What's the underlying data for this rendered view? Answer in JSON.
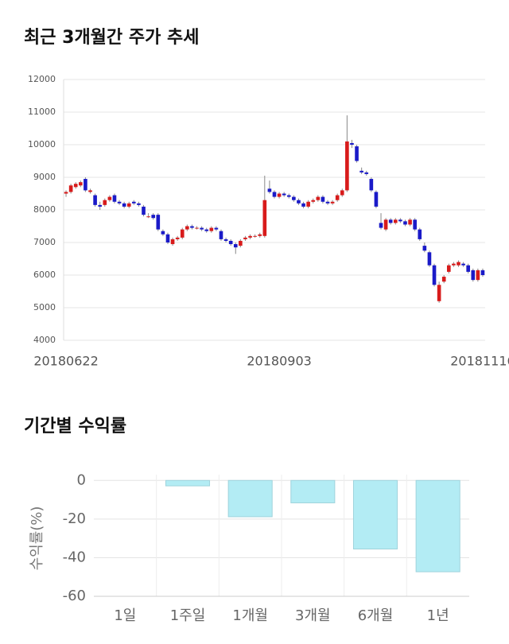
{
  "chart_data": [
    {
      "type": "candlestick",
      "title": "최근 3개월간 주가 추세",
      "categories": [
        "20180622",
        null,
        null,
        null,
        null,
        null,
        null,
        null,
        null,
        null,
        null,
        null,
        null,
        null,
        null,
        null,
        null,
        null,
        null,
        null,
        null,
        null,
        null,
        null,
        null,
        null,
        null,
        null,
        null,
        null,
        null,
        null,
        null,
        null,
        null,
        null,
        null,
        null,
        null,
        null,
        null,
        null,
        null,
        null,
        "20180903",
        null,
        null,
        null,
        null,
        null,
        null,
        null,
        null,
        null,
        null,
        null,
        null,
        null,
        null,
        null,
        null,
        null,
        null,
        null,
        null,
        null,
        null,
        null,
        null,
        null,
        null,
        null,
        null,
        null,
        null,
        null,
        null,
        null,
        null,
        null,
        null,
        null,
        null,
        null,
        null,
        null,
        "20181116"
      ],
      "open": [
        8500,
        8550,
        8700,
        8750,
        8950,
        8550,
        8450,
        8150,
        8150,
        8300,
        8450,
        8250,
        8200,
        8100,
        8250,
        8200,
        8100,
        7800,
        7850,
        7850,
        7350,
        7250,
        6950,
        7100,
        7150,
        7400,
        7500,
        7450,
        7450,
        7400,
        7350,
        7450,
        7350,
        7100,
        7050,
        6950,
        6900,
        7100,
        7150,
        7200,
        7200,
        7200,
        8650,
        8550,
        8400,
        8500,
        8450,
        8400,
        8300,
        8200,
        8100,
        8250,
        8300,
        8400,
        8250,
        8200,
        8300,
        8450,
        8600,
        10050,
        9950,
        9200,
        9150,
        8950,
        8550,
        7600,
        7400,
        7700,
        7600,
        7700,
        7650,
        7550,
        7700,
        7400,
        6900,
        6700,
        6300,
        5200,
        5800,
        6100,
        6300,
        6300,
        6350,
        6300,
        6150,
        5850,
        6150
      ],
      "high": [
        8600,
        8800,
        8850,
        8900,
        9000,
        8650,
        8500,
        8250,
        8350,
        8450,
        8500,
        8300,
        8250,
        8250,
        8300,
        8250,
        8150,
        7900,
        7900,
        7900,
        7400,
        7300,
        7150,
        7200,
        7450,
        7550,
        7550,
        7500,
        7500,
        7450,
        7500,
        7500,
        7400,
        7150,
        7100,
        7000,
        7100,
        7200,
        7250,
        7250,
        7300,
        9050,
        8900,
        8600,
        8550,
        8550,
        8500,
        8450,
        8350,
        8250,
        8300,
        8350,
        8450,
        8450,
        8300,
        8300,
        8500,
        8650,
        10900,
        10150,
        10000,
        9300,
        9200,
        9000,
        8600,
        7900,
        7750,
        7750,
        7750,
        7750,
        7700,
        7750,
        7750,
        7450,
        7000,
        6750,
        6350,
        5800,
        6000,
        6350,
        6400,
        6450,
        6400,
        6350,
        6200,
        6200,
        6200
      ],
      "low": [
        8400,
        8500,
        8650,
        8700,
        8550,
        8500,
        8100,
        8000,
        8100,
        8250,
        8200,
        8150,
        8050,
        8050,
        8150,
        8100,
        7800,
        7750,
        7700,
        7350,
        7200,
        6950,
        6900,
        7050,
        7100,
        7350,
        7400,
        7400,
        7350,
        7300,
        7300,
        7350,
        7050,
        7000,
        6900,
        6650,
        6850,
        7050,
        7100,
        7150,
        7150,
        7150,
        8500,
        8350,
        8350,
        8400,
        8350,
        8250,
        8150,
        8050,
        8050,
        8200,
        8250,
        8200,
        8150,
        8150,
        8250,
        8400,
        8550,
        9900,
        9450,
        9100,
        9050,
        8550,
        8050,
        7400,
        7350,
        7550,
        7550,
        7600,
        7500,
        7500,
        7350,
        7050,
        6700,
        6250,
        5650,
        5150,
        5750,
        6050,
        6250,
        6250,
        6250,
        6050,
        5800,
        5800,
        5950
      ],
      "close": [
        8550,
        8750,
        8800,
        8850,
        8600,
        8600,
        8150,
        8100,
        8300,
        8400,
        8250,
        8200,
        8100,
        8200,
        8200,
        8150,
        7850,
        7800,
        7750,
        7400,
        7250,
        7000,
        7100,
        7150,
        7400,
        7500,
        7450,
        7450,
        7400,
        7350,
        7450,
        7400,
        7100,
        7050,
        6950,
        6850,
        7050,
        7150,
        7200,
        7200,
        7250,
        8300,
        8550,
        8400,
        8500,
        8450,
        8400,
        8300,
        8200,
        8100,
        8250,
        8300,
        8400,
        8250,
        8200,
        8250,
        8450,
        8600,
        10100,
        10000,
        9500,
        9150,
        9100,
        8600,
        8100,
        7450,
        7700,
        7600,
        7700,
        7650,
        7550,
        7700,
        7400,
        7100,
        6750,
        6300,
        5700,
        5700,
        5950,
        6300,
        6350,
        6400,
        6300,
        6100,
        5850,
        6150,
        6000
      ],
      "up_color": "#d81b1b",
      "down_color": "#1a1ac8",
      "ylim": [
        4000,
        12000
      ],
      "yticks": [
        4000,
        5000,
        6000,
        7000,
        8000,
        9000,
        10000,
        11000,
        12000
      ],
      "grid": true
    },
    {
      "type": "bar",
      "title": "기간별 수익률",
      "y_label": "수익률(%)",
      "categories": [
        "1일",
        "1주일",
        "1개월",
        "3개월",
        "6개월",
        "1년"
      ],
      "values": [
        0,
        -2.8,
        -18.8,
        -11.6,
        -35.5,
        -47.3
      ],
      "color": "#b3ecf4",
      "ylim": [
        -60,
        3
      ],
      "yticks": [
        0,
        -20,
        -40,
        -60
      ],
      "grid": true
    }
  ]
}
